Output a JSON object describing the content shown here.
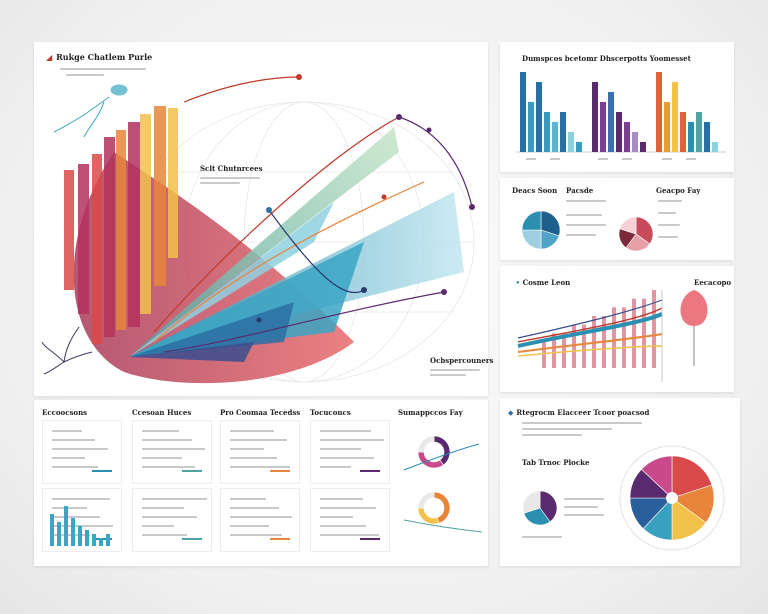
{
  "main": {
    "title": "Rukge Chatlem Purle",
    "center_label": "Sclt Chutnrcees",
    "bottom_label": "Ocbspercouners",
    "colors": [
      "#d94a4a",
      "#b3315d",
      "#e8853a",
      "#f1c14a",
      "#6fb8d1",
      "#2a8fb0",
      "#4fa3a0",
      "#8fd0e0",
      "#3a4d8f"
    ]
  },
  "top_right": {
    "title": "Dumspcos bcetomr Dhscerpotts Yoomesset",
    "chart_data": {
      "type": "bar",
      "groups": [
        {
          "values": [
            8,
            5,
            7,
            4,
            3,
            4,
            2,
            1
          ],
          "colors": [
            "#2a6fa3",
            "#3a9bc0",
            "#2a6fa3",
            "#3a9bc0",
            "#5bb3d0",
            "#2a6fa3",
            "#8fd0e0",
            "#3a9bc0"
          ]
        },
        {
          "values": [
            7,
            5,
            6,
            4,
            3,
            2,
            1
          ],
          "colors": [
            "#5a2a6e",
            "#7a3f8f",
            "#3c6fb0",
            "#5a2a6e",
            "#7a3f8f",
            "#a58cc2",
            "#5a2a6e"
          ]
        },
        {
          "values": [
            8,
            5,
            7,
            4,
            3,
            4,
            3,
            1
          ],
          "colors": [
            "#d9663a",
            "#e89a3a",
            "#f1c14a",
            "#d9663a",
            "#2a8fb0",
            "#4fa3a0",
            "#2a6fa3",
            "#8fd0e0"
          ]
        }
      ]
    }
  },
  "mid_right": {
    "labels": [
      "Deacs Soon",
      "Pacsde",
      "Geacpo Fay"
    ],
    "pie1": {
      "values": [
        30,
        20,
        25,
        25
      ],
      "colors": [
        "#1f5f8b",
        "#4fa3c7",
        "#9ccfe0",
        "#2a8fb0"
      ]
    },
    "pie2": {
      "values": [
        35,
        25,
        20,
        20
      ],
      "colors": [
        "#c94a5a",
        "#e8a0a8",
        "#7a2a3a",
        "#f5d0d5"
      ]
    }
  },
  "lower_right": {
    "label": "Cosme Leon",
    "label2": "Eecacopo",
    "chart_data": {
      "type": "bar",
      "values": [
        3,
        4,
        4,
        5,
        5,
        6,
        6,
        7,
        7,
        8,
        8,
        9
      ],
      "color": "#d97a8a"
    }
  },
  "bottom_left": {
    "headers": [
      "Eccoocsons",
      "Ccesoan Huces",
      "Pro Coomaa Tecedss",
      "Tocuconcs",
      "Sumappccos Fay"
    ]
  },
  "bottom_right": {
    "title": "Rtegrocm Elacceer Tcoor poacsod",
    "label": "Tab Trnoc Plocke",
    "donut": {
      "values": [
        20,
        15,
        15,
        12,
        13,
        12,
        13
      ],
      "colors": [
        "#d94a4a",
        "#e8853a",
        "#f1c14a",
        "#3aa0c0",
        "#2a5f9b",
        "#5a2a6e",
        "#c94a8a"
      ]
    }
  }
}
